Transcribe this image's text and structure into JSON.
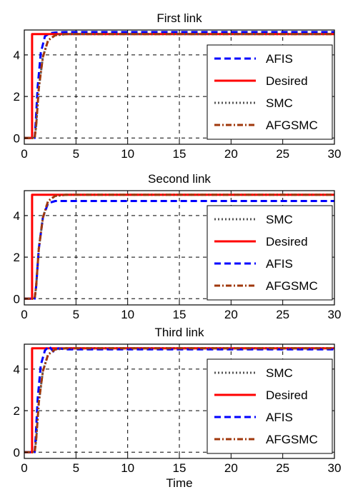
{
  "chart_data": [
    {
      "type": "line",
      "title": "First link",
      "xlabel": "",
      "ylabel": "",
      "xlim": [
        0,
        30
      ],
      "ylim": [
        -0.3,
        5.2
      ],
      "xticks": [
        0,
        5,
        10,
        15,
        20,
        25,
        30
      ],
      "yticks": [
        0,
        2,
        4
      ],
      "grid": true,
      "legend_position": "right",
      "series": [
        {
          "name": "AFIS",
          "color": "#0000ff",
          "style": "dash",
          "x": [
            0,
            1,
            1.1,
            1.3,
            1.6,
            2.0,
            2.5,
            3.0,
            4.0,
            30
          ],
          "y": [
            0,
            0,
            0.7,
            2.5,
            4.1,
            4.9,
            5.05,
            5.08,
            5.1,
            5.1
          ]
        },
        {
          "name": "Desired",
          "color": "#ff0000",
          "style": "solid",
          "x": [
            0,
            0.75,
            0.75,
            30
          ],
          "y": [
            0,
            0,
            5,
            5
          ]
        },
        {
          "name": "SMC",
          "color": "#555555",
          "style": "dot",
          "x": [
            0,
            1,
            1.15,
            1.4,
            1.8,
            2.3,
            3.0,
            4.0,
            30
          ],
          "y": [
            0,
            0,
            0.6,
            2.4,
            3.9,
            4.7,
            4.95,
            5.0,
            5.0
          ]
        },
        {
          "name": "AFGSMC",
          "color": "#a0380c",
          "style": "dashdot",
          "x": [
            0,
            1,
            1.15,
            1.4,
            1.8,
            2.3,
            3.0,
            4.0,
            30
          ],
          "y": [
            0,
            0,
            0.6,
            2.4,
            3.9,
            4.7,
            4.95,
            5.0,
            5.0
          ]
        }
      ]
    },
    {
      "type": "line",
      "title": "Second link",
      "xlabel": "",
      "ylabel": "",
      "xlim": [
        0,
        30
      ],
      "ylim": [
        -0.3,
        5.2
      ],
      "xticks": [
        0,
        5,
        10,
        15,
        20,
        25,
        30
      ],
      "yticks": [
        0,
        2,
        4
      ],
      "grid": true,
      "legend_position": "right",
      "series": [
        {
          "name": "SMC",
          "color": "#555555",
          "style": "dot",
          "x": [
            0,
            1,
            1.15,
            1.4,
            1.8,
            2.3,
            3.0,
            4.0,
            30
          ],
          "y": [
            0,
            0,
            0.6,
            2.4,
            3.9,
            4.7,
            4.95,
            5.0,
            5.0
          ]
        },
        {
          "name": "Desired",
          "color": "#ff0000",
          "style": "solid",
          "x": [
            0,
            0.75,
            0.75,
            30
          ],
          "y": [
            0,
            0,
            5,
            5
          ]
        },
        {
          "name": "AFIS",
          "color": "#0000ff",
          "style": "dash",
          "x": [
            0,
            1,
            1.15,
            1.4,
            1.8,
            2.3,
            3.0,
            30
          ],
          "y": [
            0,
            0,
            0.6,
            2.4,
            3.9,
            4.6,
            4.7,
            4.7
          ]
        },
        {
          "name": "AFGSMC",
          "color": "#a0380c",
          "style": "dashdot",
          "x": [
            0,
            1,
            1.15,
            1.4,
            1.8,
            2.3,
            3.0,
            4.0,
            30
          ],
          "y": [
            0,
            0,
            0.6,
            2.4,
            3.9,
            4.7,
            4.95,
            5.0,
            5.0
          ]
        }
      ]
    },
    {
      "type": "line",
      "title": "Third link",
      "xlabel": "Time",
      "ylabel": "",
      "xlim": [
        0,
        30
      ],
      "ylim": [
        -0.3,
        5.2
      ],
      "xticks": [
        0,
        5,
        10,
        15,
        20,
        25,
        30
      ],
      "yticks": [
        0,
        2,
        4
      ],
      "grid": true,
      "legend_position": "right",
      "series": [
        {
          "name": "SMC",
          "color": "#555555",
          "style": "dot",
          "x": [
            0,
            1,
            1.15,
            1.4,
            1.8,
            2.3,
            3.0,
            4.0,
            30
          ],
          "y": [
            0,
            0,
            0.6,
            2.4,
            3.9,
            4.7,
            4.95,
            5.0,
            5.0
          ]
        },
        {
          "name": "Desired",
          "color": "#ff0000",
          "style": "solid",
          "x": [
            0,
            0.75,
            0.75,
            30
          ],
          "y": [
            0,
            0,
            5,
            5
          ]
        },
        {
          "name": "AFIS",
          "color": "#0000ff",
          "style": "dash",
          "x": [
            0,
            1,
            1.1,
            1.3,
            1.6,
            2.0,
            2.4,
            2.8,
            3.3,
            4.0,
            30
          ],
          "y": [
            0,
            0,
            0.7,
            2.6,
            4.2,
            4.9,
            5.1,
            4.85,
            5.0,
            4.95,
            4.95
          ]
        },
        {
          "name": "AFGSMC",
          "color": "#a0380c",
          "style": "dashdot",
          "x": [
            0,
            1,
            1.15,
            1.4,
            1.8,
            2.3,
            3.0,
            4.0,
            30
          ],
          "y": [
            0,
            0,
            0.6,
            2.4,
            3.9,
            4.7,
            4.95,
            5.0,
            5.0
          ]
        }
      ]
    }
  ]
}
